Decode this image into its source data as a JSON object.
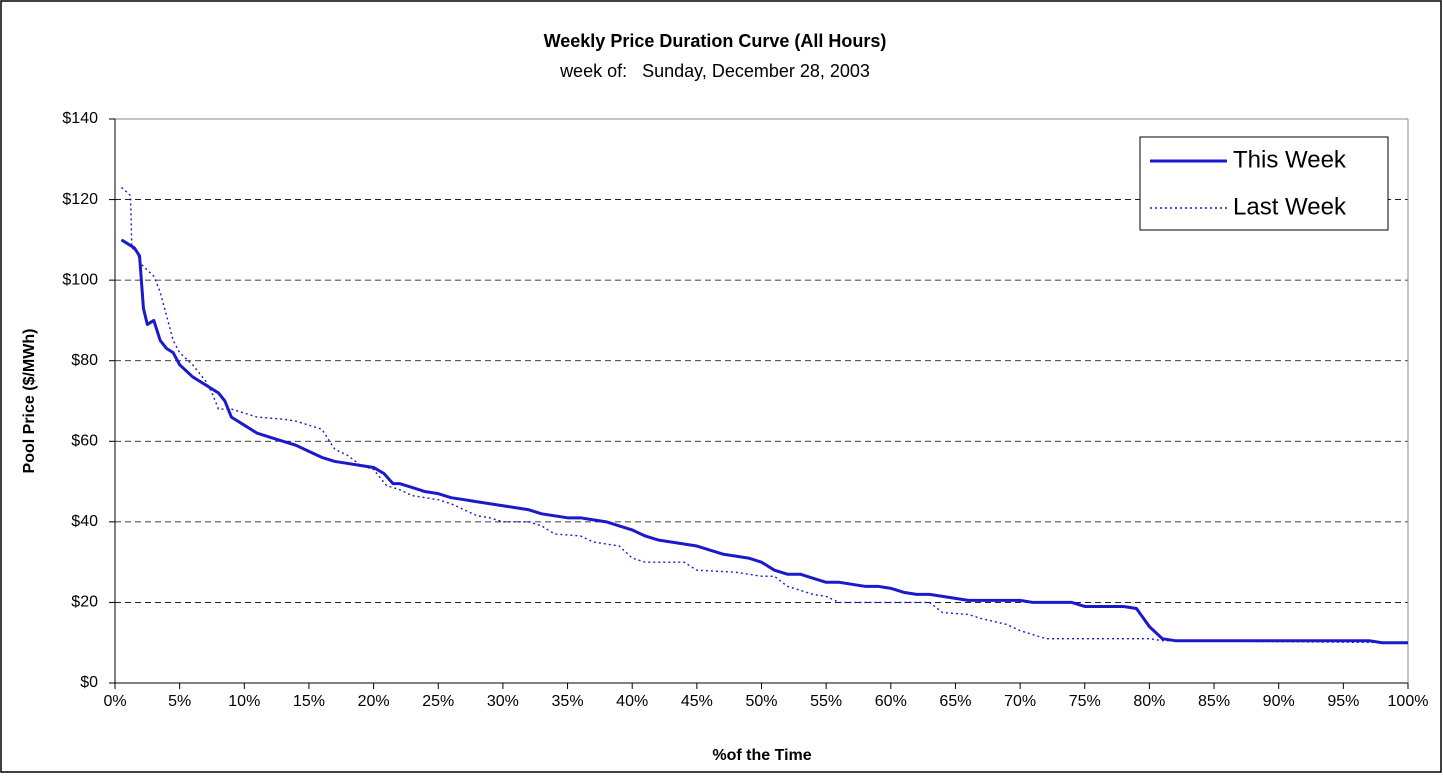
{
  "chart_data": {
    "type": "line",
    "title": "Weekly Price Duration Curve (All Hours)",
    "subtitle": "week of:   Sunday, December 28, 2003",
    "x_label": "%of the Time",
    "y_label": "Pool Price ($/MWh)",
    "xlim": [
      0,
      100
    ],
    "ylim": [
      0,
      140
    ],
    "xticks": [
      {
        "value": 0,
        "label": "0%"
      },
      {
        "value": 5,
        "label": "5%"
      },
      {
        "value": 10,
        "label": "10%"
      },
      {
        "value": 15,
        "label": "15%"
      },
      {
        "value": 20,
        "label": "20%"
      },
      {
        "value": 25,
        "label": "25%"
      },
      {
        "value": 30,
        "label": "30%"
      },
      {
        "value": 35,
        "label": "35%"
      },
      {
        "value": 40,
        "label": "40%"
      },
      {
        "value": 45,
        "label": "45%"
      },
      {
        "value": 50,
        "label": "50%"
      },
      {
        "value": 55,
        "label": "55%"
      },
      {
        "value": 60,
        "label": "60%"
      },
      {
        "value": 65,
        "label": "65%"
      },
      {
        "value": 70,
        "label": "70%"
      },
      {
        "value": 75,
        "label": "75%"
      },
      {
        "value": 80,
        "label": "80%"
      },
      {
        "value": 85,
        "label": "85%"
      },
      {
        "value": 90,
        "label": "90%"
      },
      {
        "value": 95,
        "label": "95%"
      },
      {
        "value": 100,
        "label": "100%"
      }
    ],
    "yticks": [
      {
        "value": 0,
        "label": "$0"
      },
      {
        "value": 20,
        "label": "$20"
      },
      {
        "value": 40,
        "label": "$40"
      },
      {
        "value": 60,
        "label": "$60"
      },
      {
        "value": 80,
        "label": "$80"
      },
      {
        "value": 100,
        "label": "$100"
      },
      {
        "value": 120,
        "label": "$120"
      },
      {
        "value": 140,
        "label": "$140"
      }
    ],
    "grid": true,
    "legend": "top-right",
    "series": [
      {
        "name": "This Week",
        "color": "#1a1acc",
        "style": "solid",
        "x": [
          0.5,
          1.5,
          1.9,
          2.2,
          2.5,
          3,
          3.5,
          4,
          4.5,
          5,
          6,
          7,
          8,
          8.5,
          9,
          10,
          11,
          12,
          13,
          14,
          15,
          16,
          17,
          18,
          19,
          20,
          20.8,
          21.5,
          22,
          23,
          24,
          25,
          26,
          27,
          28,
          29,
          30,
          31,
          32,
          33,
          34,
          35,
          36,
          37,
          38,
          39,
          40,
          41,
          42,
          43,
          44,
          45,
          46,
          47,
          48,
          49,
          50,
          51,
          52,
          53,
          54,
          55,
          56,
          57,
          58,
          59,
          60,
          61,
          62,
          63,
          64,
          65,
          66,
          68,
          70,
          71,
          74,
          75,
          78,
          79,
          80,
          81,
          82,
          90,
          97,
          98,
          100
        ],
        "values": [
          110,
          108,
          106,
          93,
          89,
          90,
          85,
          83,
          82,
          79,
          76,
          74,
          72,
          70,
          66,
          64,
          62,
          61,
          60,
          59,
          57.5,
          56,
          55,
          54.5,
          54,
          53.5,
          52,
          49.5,
          49.5,
          48.5,
          47.5,
          47,
          46,
          45.5,
          45,
          44.5,
          44,
          43.5,
          43,
          42,
          41.5,
          41,
          41,
          40.5,
          40,
          39,
          38,
          36.5,
          35.5,
          35,
          34.5,
          34,
          33,
          32,
          31.5,
          31,
          30,
          28,
          27,
          27,
          26,
          25,
          25,
          24.5,
          24,
          24,
          23.5,
          22.5,
          22,
          22,
          21.5,
          21,
          20.5,
          20.5,
          20.5,
          20,
          20,
          19,
          19,
          18.5,
          14,
          11,
          10.5,
          10.5,
          10.5,
          10,
          10
        ]
      },
      {
        "name": "Last Week",
        "color": "#1a1acc",
        "style": "dotted",
        "x": [
          0.5,
          1.2,
          1.3,
          1.7,
          2,
          3,
          3.5,
          4,
          4.5,
          5,
          6,
          7,
          7.5,
          8,
          9,
          10,
          11,
          13,
          14,
          15,
          16,
          17,
          18,
          19,
          20,
          21,
          22,
          23,
          25,
          26,
          27,
          28,
          29,
          30,
          32,
          33,
          34,
          36,
          37,
          38,
          39,
          40,
          41,
          44,
          45,
          48,
          49,
          50,
          51,
          52,
          54,
          55,
          56,
          60,
          63,
          64,
          66,
          67,
          69,
          70,
          71,
          72,
          80,
          81,
          100
        ],
        "values": [
          123,
          121,
          108,
          107,
          104,
          101,
          97,
          91,
          85,
          82,
          79,
          75,
          72,
          68,
          68,
          67,
          66,
          65.5,
          65,
          64,
          63,
          58,
          56.5,
          54,
          53,
          49,
          48,
          46.5,
          45.5,
          44.5,
          43,
          41.5,
          41,
          40,
          40,
          39,
          37,
          36.5,
          35,
          34.5,
          34,
          31,
          30,
          30,
          28,
          27.5,
          27,
          26.5,
          26.5,
          24,
          22,
          21.5,
          20,
          20,
          20,
          17.5,
          17,
          16,
          14.5,
          13,
          12,
          11,
          11,
          10.5,
          10
        ]
      }
    ]
  }
}
